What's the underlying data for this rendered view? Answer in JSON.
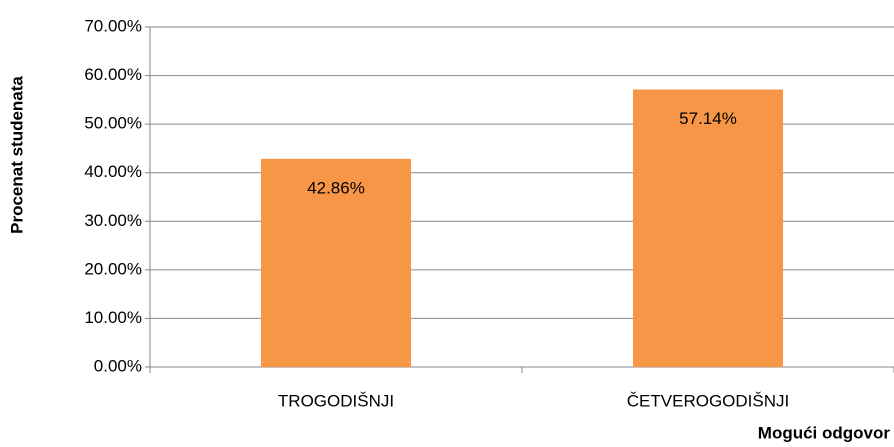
{
  "chart_data": {
    "type": "bar",
    "x_label": "Mogući odgovor",
    "y_label": "Procenat studenata",
    "categories": [
      "TROGODIŠNJI",
      "ČETVEROGODIŠNJI"
    ],
    "values": [
      42.86,
      57.14
    ],
    "value_labels": [
      "42.86%",
      "57.14%"
    ],
    "color": "#f79646",
    "ylim": [
      0,
      70
    ],
    "yticks": [
      {
        "value": 0,
        "label": "0.00%"
      },
      {
        "value": 10,
        "label": "10.00%"
      },
      {
        "value": 20,
        "label": "20.00%"
      },
      {
        "value": 30,
        "label": "30.00%"
      },
      {
        "value": 40,
        "label": "40.00%"
      },
      {
        "value": 50,
        "label": "50.00%"
      },
      {
        "value": 60,
        "label": "60.00%"
      },
      {
        "value": 70,
        "label": "70.00%"
      }
    ],
    "grid": true
  }
}
